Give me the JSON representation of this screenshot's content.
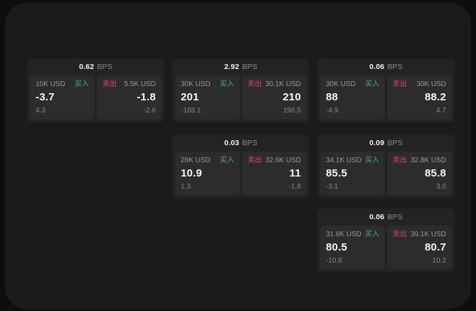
{
  "theme": {
    "outer_background": "#0e0e0f",
    "surface_background": "#1b1b1d",
    "card_background": "#232326",
    "subpanel_background": "#2c2c2f",
    "buy_color": "#4fa878",
    "sell_color": "#d24b5e",
    "primary_text": "#f6f6f7",
    "muted_text": "#98989b"
  },
  "labels": {
    "bps_unit": "BPS",
    "buy": "买入",
    "sell": "卖出"
  },
  "cards": [
    {
      "bps": "0.62",
      "buy": {
        "amount": "10K USD",
        "price": "-3.7",
        "change": "4.3"
      },
      "sell": {
        "amount": "5.5K USD",
        "price": "-1.8",
        "change": "-2.6"
      }
    },
    {
      "bps": "2.92",
      "buy": {
        "amount": "30K USD",
        "price": "201",
        "change": "-188.1"
      },
      "sell": {
        "amount": "30.1K USD",
        "price": "210",
        "change": "196.5"
      }
    },
    {
      "bps": "0.06",
      "buy": {
        "amount": "30K USD",
        "price": "88",
        "change": "-4.9"
      },
      "sell": {
        "amount": "30K USD",
        "price": "88.2",
        "change": "4.7"
      }
    },
    {
      "bps": "0.03",
      "buy": {
        "amount": "28K USD",
        "price": "10.9",
        "change": "1.3"
      },
      "sell": {
        "amount": "32.6K USD",
        "price": "11",
        "change": "-1.8"
      }
    },
    {
      "bps": "0.09",
      "buy": {
        "amount": "34.1K USD",
        "price": "85.5",
        "change": "-3.1"
      },
      "sell": {
        "amount": "32.8K USD",
        "price": "85.8",
        "change": "3.0"
      }
    },
    {
      "bps": "0.06",
      "buy": {
        "amount": "31.8K USD",
        "price": "80.5",
        "change": "-10.8"
      },
      "sell": {
        "amount": "39.1K USD",
        "price": "80.7",
        "change": "10.2"
      }
    }
  ]
}
